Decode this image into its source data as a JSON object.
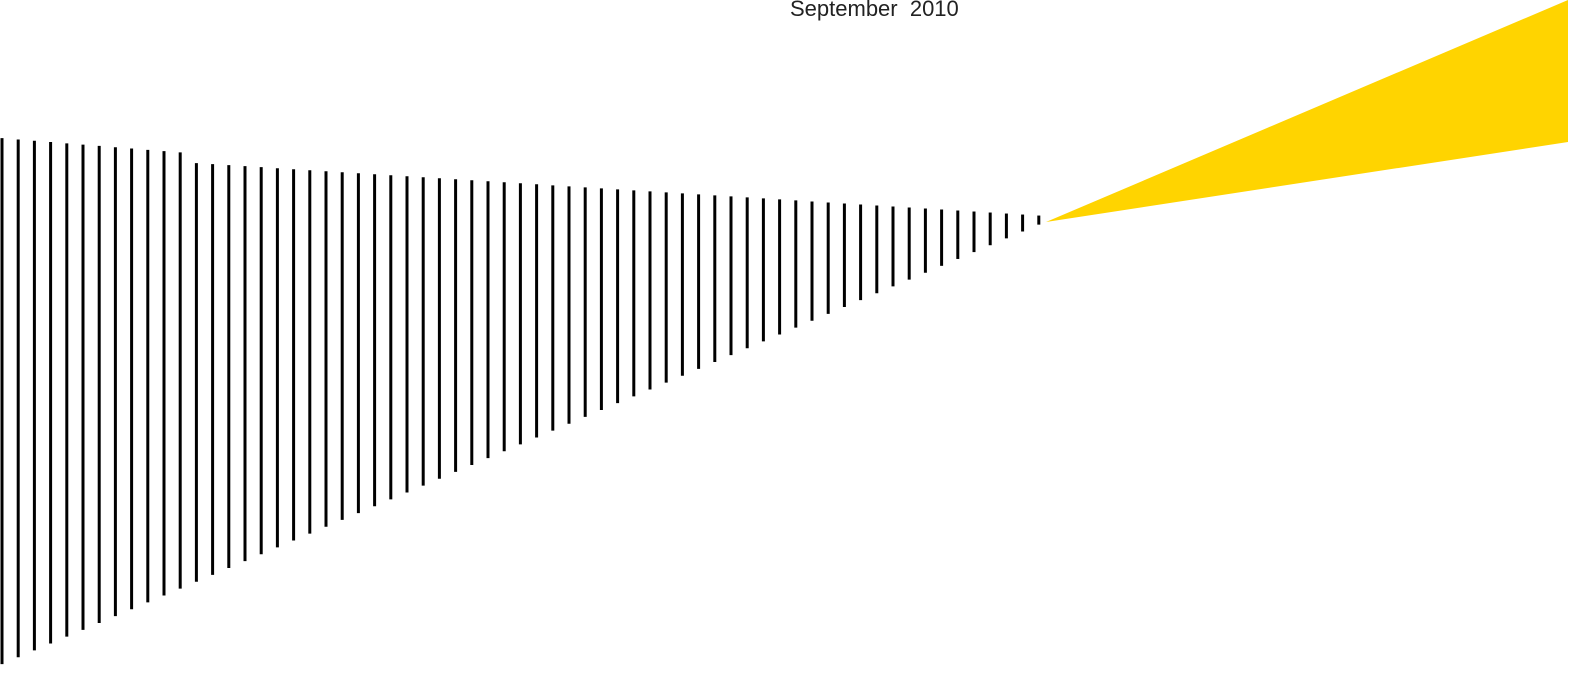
{
  "date": "September  2010"
}
